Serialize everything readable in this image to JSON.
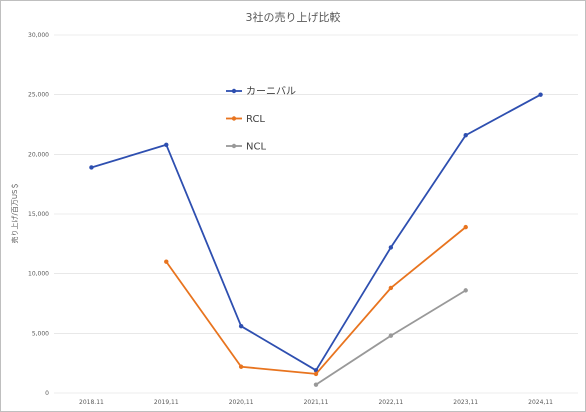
{
  "chart_data": {
    "type": "line",
    "title": "3社の売り上げ比較",
    "ylabel": "売り上げ/百万US＄",
    "xlabel": "",
    "categories": [
      "2018.11",
      "2019,11",
      "2020,11",
      "2021,11",
      "2022,11",
      "2023,11",
      "2024,11"
    ],
    "ylim": [
      0,
      30000
    ],
    "yticks": [
      "0",
      "5,000",
      "10,000",
      "15,000",
      "20,000",
      "25,000",
      "30,000"
    ],
    "grid": true,
    "legend_position": "center-left",
    "series": [
      {
        "name": "カーニバル",
        "color": "#2e4fb0",
        "values": [
          18900,
          20800,
          5600,
          1900,
          12200,
          21600,
          25000
        ]
      },
      {
        "name": "RCL",
        "color": "#e8741f",
        "values": [
          null,
          11000,
          2200,
          1600,
          8800,
          13900,
          null
        ]
      },
      {
        "name": "NCL",
        "color": "#999999",
        "values": [
          null,
          null,
          null,
          700,
          4800,
          8600,
          null
        ]
      }
    ]
  }
}
